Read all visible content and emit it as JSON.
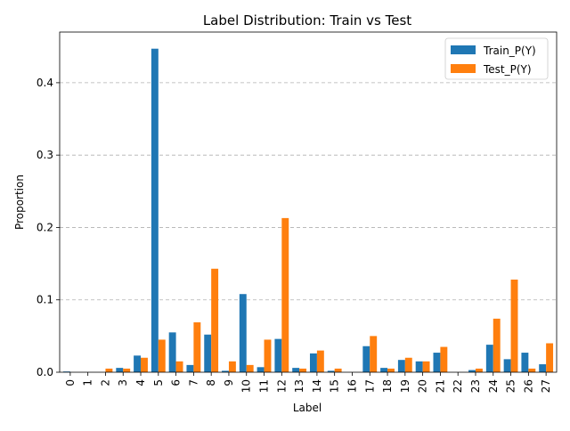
{
  "chart_data": {
    "type": "bar",
    "title": "Label Distribution: Train vs Test",
    "xlabel": "Label",
    "ylabel": "Proportion",
    "ylim": [
      0,
      0.47
    ],
    "yticks": [
      "0.0",
      "0.1",
      "0.2",
      "0.3",
      "0.4"
    ],
    "grid": "y-dashed",
    "legend_position": "top-right",
    "categories": [
      "0",
      "1",
      "2",
      "3",
      "4",
      "5",
      "6",
      "7",
      "8",
      "9",
      "10",
      "11",
      "12",
      "13",
      "14",
      "15",
      "16",
      "17",
      "18",
      "19",
      "20",
      "21",
      "22",
      "23",
      "24",
      "25",
      "26",
      "27"
    ],
    "series": [
      {
        "name": "Train_P(Y)",
        "color": "#1f77b4",
        "values": [
          0.001,
          0.0,
          0.0,
          0.006,
          0.023,
          0.447,
          0.055,
          0.01,
          0.052,
          0.002,
          0.108,
          0.007,
          0.046,
          0.006,
          0.026,
          0.002,
          0.0,
          0.036,
          0.006,
          0.017,
          0.015,
          0.027,
          0.0,
          0.003,
          0.038,
          0.018,
          0.027,
          0.011
        ]
      },
      {
        "name": "Test_P(Y)",
        "color": "#ff7f0e",
        "values": [
          0.0,
          0.0,
          0.005,
          0.005,
          0.02,
          0.045,
          0.015,
          0.069,
          0.143,
          0.015,
          0.01,
          0.045,
          0.213,
          0.005,
          0.03,
          0.005,
          0.0,
          0.05,
          0.005,
          0.02,
          0.015,
          0.035,
          0.0,
          0.005,
          0.074,
          0.128,
          0.005,
          0.04
        ]
      }
    ]
  }
}
